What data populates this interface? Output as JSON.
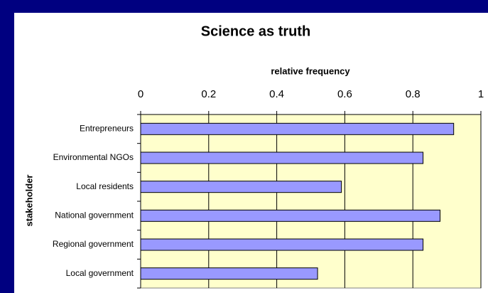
{
  "chart_data": {
    "type": "bar",
    "orientation": "horizontal",
    "title": "Science as truth",
    "x_label": "relative frequency",
    "y_label": "stakeholder",
    "categories": [
      "Entrepreneurs",
      "Environmental NGOs",
      "Local residents",
      "National government",
      "Regional government",
      "Local government"
    ],
    "values": [
      0.92,
      0.83,
      0.59,
      0.88,
      0.83,
      0.52
    ],
    "color": "#9999ff",
    "plot_background": "#ffffcc",
    "xlim": [
      0,
      1
    ],
    "xticks": [
      0,
      0.2,
      0.4,
      0.6,
      0.8,
      1
    ],
    "grid": true
  }
}
